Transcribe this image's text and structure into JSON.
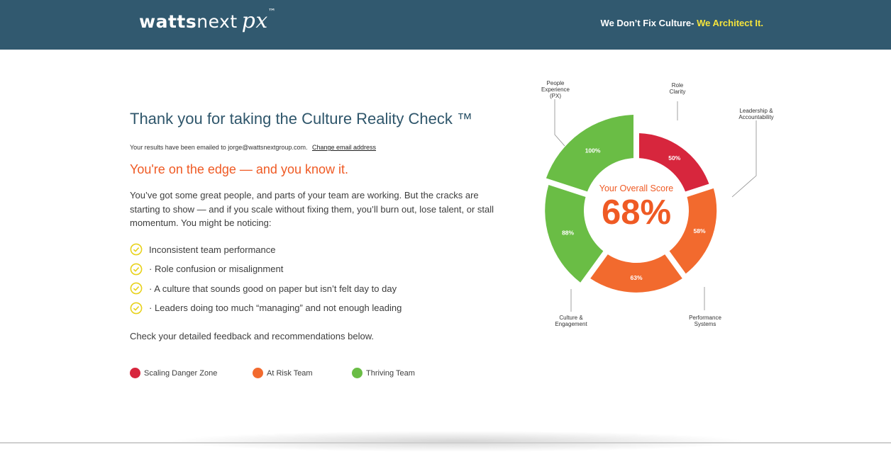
{
  "header": {
    "logo_word1": "watts",
    "logo_word2": "next",
    "logo_px": "px",
    "logo_tm": "™",
    "tagline_part1": "We Don’t Fix Culture-",
    "tagline_part2": " We Architect It."
  },
  "main": {
    "title": "Thank you for taking the Culture Reality Check ™",
    "email_text": "Your results have been emailed to jorge@wattsnextgroup.com.",
    "change_email_link": "Change email address",
    "subheadline": "You're on the edge — and you know it.",
    "paragraph": "You’ve got some great people, and parts of your team are working. But the cracks are starting to show — and if you scale without fixing them, you’ll burn out, lose talent, or stall momentum. You might be noticing:",
    "checklist": [
      "Inconsistent team performance",
      "· Role confusion or misalignment",
      "· A culture that sounds good on paper but isn’t felt day to day",
      "· Leaders doing too much “managing” and not enough leading"
    ],
    "footnote": "Check your detailed feedback and recommendations below."
  },
  "legend": [
    {
      "label": "Scaling Danger Zone",
      "color": "#d7263d"
    },
    {
      "label": "At Risk Team",
      "color": "#f26a2e"
    },
    {
      "label": "Thriving Team",
      "color": "#6abd45"
    }
  ],
  "chart_data": {
    "type": "pie",
    "categories": [
      "Role Clarity",
      "Leadership & Accountability",
      "Performance Systems",
      "Culture & Engagement",
      "People Experience (PX)"
    ],
    "category_lines": [
      [
        "Role",
        "Clarity"
      ],
      [
        "Leadership &",
        "Accountability"
      ],
      [
        "Performance",
        "Systems"
      ],
      [
        "Culture &",
        "Engagement"
      ],
      [
        "People",
        "Experience",
        "(PX)"
      ]
    ],
    "values": [
      50,
      58,
      63,
      88,
      100
    ],
    "value_labels": [
      "50%",
      "58%",
      "63%",
      "88%",
      "100%"
    ],
    "slice_colors": [
      "#d7263d",
      "#f26a2e",
      "#f26a2e",
      "#6abd45",
      "#6abd45"
    ],
    "center_label": "Your Overall Score",
    "center_value": "68%"
  },
  "colors": {
    "header_bg": "#31596f",
    "accent_orange": "#ef5a24",
    "tagline_highlight": "#f5e43c",
    "check_yellow": "#e8d21c"
  }
}
